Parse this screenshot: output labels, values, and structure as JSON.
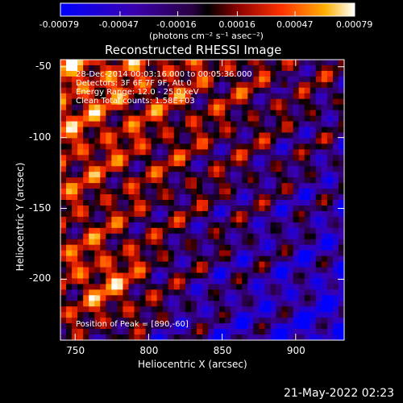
{
  "chart_data": {
    "type": "heatmap",
    "title": "Reconstructed RHESSI Image",
    "xlabel": "Heliocentric X (arcsec)",
    "ylabel": "Heliocentric Y (arcsec)",
    "xlim": [
      740,
      933
    ],
    "ylim": [
      -243,
      -45
    ],
    "x_ticks": [
      750,
      800,
      850,
      900
    ],
    "y_ticks": [
      -50,
      -100,
      -150,
      -200
    ],
    "colorbar": {
      "ticks": [
        "-0.00079",
        "-0.00047",
        "-0.00016",
        "0.00016",
        "0.00047",
        "0.00079"
      ],
      "units": "(photons cm⁻² s⁻¹ asec⁻²)",
      "range": [
        -0.00079,
        0.00079
      ]
    },
    "annotations": {
      "time": "28-Dec-2014 00:03:16.000 to 00:05:36.000",
      "detectors": "Detectors: 3F 6F 7F 9F, Att 0",
      "energy": "Energy Range: 12.0 - 25.0 keV",
      "clean": "Clean    Total counts: 1.58E+03",
      "peak": "Position of Peak = [890,-60]"
    },
    "peak_position": [
      890,
      -60
    ],
    "timestamp": "21-May-2022 02:23"
  }
}
